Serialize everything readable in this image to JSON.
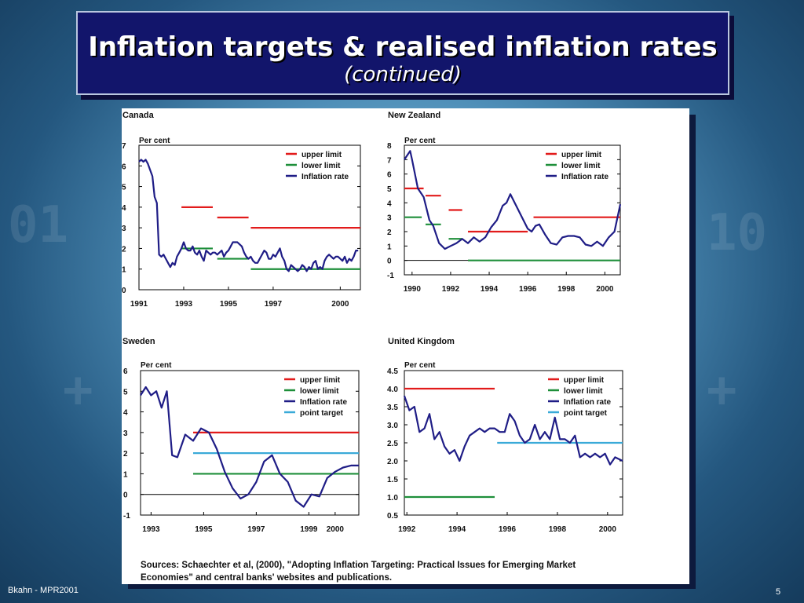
{
  "slide": {
    "title": "Inflation targets & realised inflation rates",
    "subtitle": "(continued)",
    "footer": "Bkahn - MPR2001",
    "page_number": "5",
    "sources": "Sources: Schaechter et al, (2000), \"Adopting Inflation Targeting: Practical Issues for Emerging Market Economies\" and central banks' websites and publications.",
    "sources_line1": "Sources: Schaechter et al, (2000), \"Adopting Inflation Targeting: Practical Issues for Emerging Market",
    "sources_line2": "Economies\" and central banks' websites and publications."
  },
  "colors": {
    "upper": "#e21b1b",
    "lower": "#1e8f3a",
    "rate": "#1f1d86",
    "target": "#3aaad8",
    "zero": "#000000"
  },
  "chart_data": [
    {
      "type": "line",
      "title": "Canada",
      "ylabel": "Per cent",
      "xlim": [
        1991,
        2000.9
      ],
      "ylim": [
        0,
        7
      ],
      "yticks": [
        "0",
        "1",
        "2",
        "3",
        "4",
        "5",
        "6",
        "7"
      ],
      "ytick_values": [
        0,
        1,
        2,
        3,
        4,
        5,
        6,
        7
      ],
      "xticks": [
        "1991",
        "1993",
        "1995",
        "1997",
        "2000"
      ],
      "xtick_values": [
        1991,
        1993,
        1995,
        1997,
        2000
      ],
      "zero_line": false,
      "legend": [
        "upper limit",
        "lower limit",
        "Inflation rate"
      ],
      "segments": [
        {
          "name": "upper limit",
          "x": [
            1992.9,
            1994.3
          ],
          "y": [
            4,
            4
          ]
        },
        {
          "name": "upper limit",
          "x": [
            1994.5,
            1995.9
          ],
          "y": [
            3.5,
            3.5
          ]
        },
        {
          "name": "upper limit",
          "x": [
            1996.0,
            2000.9
          ],
          "y": [
            3,
            3
          ]
        },
        {
          "name": "lower limit",
          "x": [
            1992.9,
            1994.3
          ],
          "y": [
            2,
            2
          ]
        },
        {
          "name": "lower limit",
          "x": [
            1994.5,
            1995.9
          ],
          "y": [
            1.5,
            1.5
          ]
        },
        {
          "name": "lower limit",
          "x": [
            1996.0,
            2000.9
          ],
          "y": [
            1,
            1
          ]
        }
      ],
      "series": [
        {
          "name": "Inflation rate",
          "x": [
            1991.0,
            1991.1,
            1991.2,
            1991.3,
            1991.4,
            1991.5,
            1991.6,
            1991.7,
            1991.8,
            1991.9,
            1992.0,
            1992.1,
            1992.2,
            1992.3,
            1992.4,
            1992.5,
            1992.6,
            1992.7,
            1992.8,
            1992.9,
            1993.0,
            1993.1,
            1993.2,
            1993.3,
            1993.4,
            1993.5,
            1993.6,
            1993.7,
            1993.8,
            1993.9,
            1994.0,
            1994.1,
            1994.2,
            1994.3,
            1994.4,
            1994.5,
            1994.6,
            1994.7,
            1994.8,
            1994.9,
            1995.0,
            1995.1,
            1995.2,
            1995.3,
            1995.4,
            1995.5,
            1995.6,
            1995.7,
            1995.8,
            1995.9,
            1996.0,
            1996.1,
            1996.2,
            1996.3,
            1996.4,
            1996.5,
            1996.6,
            1996.7,
            1996.8,
            1996.9,
            1997.0,
            1997.1,
            1997.2,
            1997.3,
            1997.4,
            1997.5,
            1997.6,
            1997.7,
            1997.8,
            1997.9,
            1998.0,
            1998.1,
            1998.2,
            1998.3,
            1998.4,
            1998.5,
            1998.6,
            1998.7,
            1998.8,
            1998.9,
            1999.0,
            1999.1,
            1999.2,
            1999.3,
            1999.4,
            1999.5,
            1999.6,
            1999.7,
            1999.8,
            1999.9,
            2000.0,
            2000.1,
            2000.2,
            2000.3,
            2000.4,
            2000.5,
            2000.6,
            2000.7,
            2000.8
          ],
          "y": [
            6.2,
            6.3,
            6.2,
            6.3,
            6.1,
            5.8,
            5.5,
            4.5,
            4.2,
            1.7,
            1.6,
            1.7,
            1.5,
            1.3,
            1.1,
            1.3,
            1.2,
            1.6,
            1.8,
            2.0,
            2.3,
            2.0,
            1.9,
            1.9,
            2.1,
            1.8,
            1.7,
            1.9,
            1.6,
            1.4,
            1.9,
            1.8,
            1.7,
            1.8,
            1.8,
            1.7,
            1.8,
            1.9,
            1.6,
            1.8,
            1.9,
            2.1,
            2.3,
            2.3,
            2.3,
            2.2,
            2.1,
            1.8,
            1.6,
            1.5,
            1.6,
            1.4,
            1.3,
            1.3,
            1.5,
            1.7,
            1.9,
            1.8,
            1.5,
            1.5,
            1.7,
            1.6,
            1.8,
            2.0,
            1.6,
            1.4,
            1.0,
            0.9,
            1.2,
            1.1,
            1.0,
            0.9,
            1.0,
            1.2,
            1.1,
            0.9,
            1.1,
            1.0,
            1.3,
            1.4,
            1.0,
            1.1,
            1.0,
            1.4,
            1.6,
            1.7,
            1.6,
            1.5,
            1.6,
            1.6,
            1.5,
            1.4,
            1.6,
            1.3,
            1.5,
            1.4,
            1.6,
            1.9,
            1.9
          ]
        }
      ]
    },
    {
      "type": "line",
      "title": "New Zealand",
      "ylabel": "Per cent",
      "xlim": [
        1989.6,
        2000.8
      ],
      "ylim": [
        -1,
        8
      ],
      "yticks": [
        "-1",
        "0",
        "1",
        "2",
        "3",
        "4",
        "5",
        "6",
        "7",
        "8"
      ],
      "ytick_values": [
        -1,
        0,
        1,
        2,
        3,
        4,
        5,
        6,
        7,
        8
      ],
      "xticks": [
        "1990",
        "1992",
        "1994",
        "1996",
        "1998",
        "2000"
      ],
      "xtick_values": [
        1990,
        1992,
        1994,
        1996,
        1998,
        2000
      ],
      "zero_line": true,
      "legend": [
        "upper limit",
        "lower limit",
        "Inflation rate"
      ],
      "segments": [
        {
          "name": "upper limit",
          "x": [
            1989.6,
            1990.6
          ],
          "y": [
            5,
            5
          ]
        },
        {
          "name": "upper limit",
          "x": [
            1990.7,
            1991.5
          ],
          "y": [
            4.5,
            4.5
          ]
        },
        {
          "name": "upper limit",
          "x": [
            1991.9,
            1992.6
          ],
          "y": [
            3.5,
            3.5
          ]
        },
        {
          "name": "upper limit",
          "x": [
            1992.9,
            1996.0
          ],
          "y": [
            2,
            2
          ]
        },
        {
          "name": "upper limit",
          "x": [
            1996.3,
            2000.8
          ],
          "y": [
            3,
            3
          ]
        },
        {
          "name": "lower limit",
          "x": [
            1989.6,
            1990.5
          ],
          "y": [
            3,
            3
          ]
        },
        {
          "name": "lower limit",
          "x": [
            1990.7,
            1991.5
          ],
          "y": [
            2.5,
            2.5
          ]
        },
        {
          "name": "lower limit",
          "x": [
            1991.9,
            1992.6
          ],
          "y": [
            1.5,
            1.5
          ]
        },
        {
          "name": "lower limit",
          "x": [
            1992.9,
            2000.8
          ],
          "y": [
            0,
            0
          ]
        }
      ],
      "series": [
        {
          "name": "Inflation rate",
          "x": [
            1989.6,
            1989.9,
            1990.0,
            1990.3,
            1990.6,
            1990.9,
            1991.1,
            1991.4,
            1991.7,
            1992.0,
            1992.3,
            1992.6,
            1992.9,
            1993.2,
            1993.5,
            1993.8,
            1994.1,
            1994.4,
            1994.7,
            1994.9,
            1995.1,
            1995.4,
            1995.7,
            1996.0,
            1996.2,
            1996.4,
            1996.6,
            1996.9,
            1997.2,
            1997.5,
            1997.8,
            1998.1,
            1998.4,
            1998.7,
            1999.0,
            1999.3,
            1999.6,
            1999.9,
            2000.2,
            2000.5,
            2000.8
          ],
          "y": [
            7.0,
            7.6,
            7.0,
            5.0,
            4.4,
            2.8,
            2.4,
            1.2,
            0.8,
            1.0,
            1.2,
            1.5,
            1.2,
            1.6,
            1.3,
            1.6,
            2.3,
            2.8,
            3.8,
            4.0,
            4.6,
            3.8,
            3.0,
            2.2,
            2.0,
            2.4,
            2.5,
            1.8,
            1.2,
            1.1,
            1.6,
            1.7,
            1.7,
            1.6,
            1.1,
            1.0,
            1.3,
            1.0,
            1.6,
            2.0,
            3.9
          ]
        }
      ]
    },
    {
      "type": "line",
      "title": "Sweden",
      "ylabel": "Per cent",
      "xlim": [
        1992.6,
        2000.9
      ],
      "ylim": [
        -1,
        6
      ],
      "yticks": [
        "-1",
        "0",
        "1",
        "2",
        "3",
        "4",
        "5",
        "6"
      ],
      "ytick_values": [
        -1,
        0,
        1,
        2,
        3,
        4,
        5,
        6
      ],
      "xticks": [
        "1993",
        "1995",
        "1997",
        "1999",
        "2000"
      ],
      "xtick_values": [
        1993,
        1995,
        1997,
        1999,
        2000
      ],
      "zero_line": true,
      "legend": [
        "upper limit",
        "lower limit",
        "Inflation rate",
        "point target"
      ],
      "segments": [
        {
          "name": "upper limit",
          "x": [
            1994.6,
            2000.9
          ],
          "y": [
            3,
            3
          ]
        },
        {
          "name": "lower limit",
          "x": [
            1994.6,
            2000.9
          ],
          "y": [
            1,
            1
          ]
        },
        {
          "name": "point target",
          "x": [
            1994.6,
            2000.9
          ],
          "y": [
            2,
            2
          ]
        }
      ],
      "series": [
        {
          "name": "Inflation rate",
          "x": [
            1992.6,
            1992.8,
            1993.0,
            1993.2,
            1993.4,
            1993.6,
            1993.8,
            1994.0,
            1994.3,
            1994.6,
            1994.9,
            1995.2,
            1995.5,
            1995.8,
            1996.1,
            1996.4,
            1996.7,
            1997.0,
            1997.3,
            1997.6,
            1997.9,
            1998.2,
            1998.5,
            1998.8,
            1999.1,
            1999.4,
            1999.7,
            2000.0,
            2000.3,
            2000.6,
            2000.9
          ],
          "y": [
            4.8,
            5.2,
            4.8,
            5.0,
            4.2,
            5.0,
            1.9,
            1.8,
            2.9,
            2.6,
            3.2,
            3.0,
            2.2,
            1.1,
            0.3,
            -0.2,
            0.0,
            0.6,
            1.6,
            1.9,
            1.0,
            0.6,
            -0.3,
            -0.6,
            0.0,
            -0.1,
            0.8,
            1.1,
            1.3,
            1.4,
            1.4
          ]
        }
      ]
    },
    {
      "type": "line",
      "title": "United Kingdom",
      "ylabel": "Per cent",
      "xlim": [
        1991.9,
        2000.6
      ],
      "ylim": [
        0.5,
        4.5
      ],
      "yticks": [
        "0.5",
        "1.0",
        "1.5",
        "2.0",
        "2.5",
        "3.0",
        "3.5",
        "4.0",
        "4.5"
      ],
      "ytick_values": [
        0.5,
        1.0,
        1.5,
        2.0,
        2.5,
        3.0,
        3.5,
        4.0,
        4.5
      ],
      "xticks": [
        "1992",
        "1994",
        "1996",
        "1998",
        "2000"
      ],
      "xtick_values": [
        1992,
        1994,
        1996,
        1998,
        2000
      ],
      "zero_line": false,
      "legend": [
        "upper limit",
        "lower limit",
        "Inflation rate",
        "point target"
      ],
      "segments": [
        {
          "name": "upper limit",
          "x": [
            1991.9,
            1995.5
          ],
          "y": [
            4,
            4
          ]
        },
        {
          "name": "lower limit",
          "x": [
            1991.9,
            1995.5
          ],
          "y": [
            1,
            1
          ]
        },
        {
          "name": "point target",
          "x": [
            1995.6,
            2000.6
          ],
          "y": [
            2.5,
            2.5
          ]
        }
      ],
      "series": [
        {
          "name": "Inflation rate",
          "x": [
            1991.9,
            1992.1,
            1992.3,
            1992.5,
            1992.7,
            1992.9,
            1993.1,
            1993.3,
            1993.5,
            1993.7,
            1993.9,
            1994.1,
            1994.3,
            1994.5,
            1994.7,
            1994.9,
            1995.1,
            1995.3,
            1995.5,
            1995.7,
            1995.9,
            1996.1,
            1996.3,
            1996.5,
            1996.7,
            1996.9,
            1997.1,
            1997.3,
            1997.5,
            1997.7,
            1997.9,
            1998.1,
            1998.3,
            1998.5,
            1998.7,
            1998.9,
            1999.1,
            1999.3,
            1999.5,
            1999.7,
            1999.9,
            2000.1,
            2000.3,
            2000.6
          ],
          "y": [
            3.8,
            3.4,
            3.5,
            2.8,
            2.9,
            3.3,
            2.6,
            2.8,
            2.4,
            2.2,
            2.3,
            2.0,
            2.4,
            2.7,
            2.8,
            2.9,
            2.8,
            2.9,
            2.9,
            2.8,
            2.8,
            3.3,
            3.1,
            2.7,
            2.5,
            2.6,
            3.0,
            2.6,
            2.8,
            2.6,
            3.2,
            2.6,
            2.6,
            2.5,
            2.7,
            2.1,
            2.2,
            2.1,
            2.2,
            2.1,
            2.2,
            1.9,
            2.1,
            2.0
          ]
        }
      ]
    }
  ]
}
